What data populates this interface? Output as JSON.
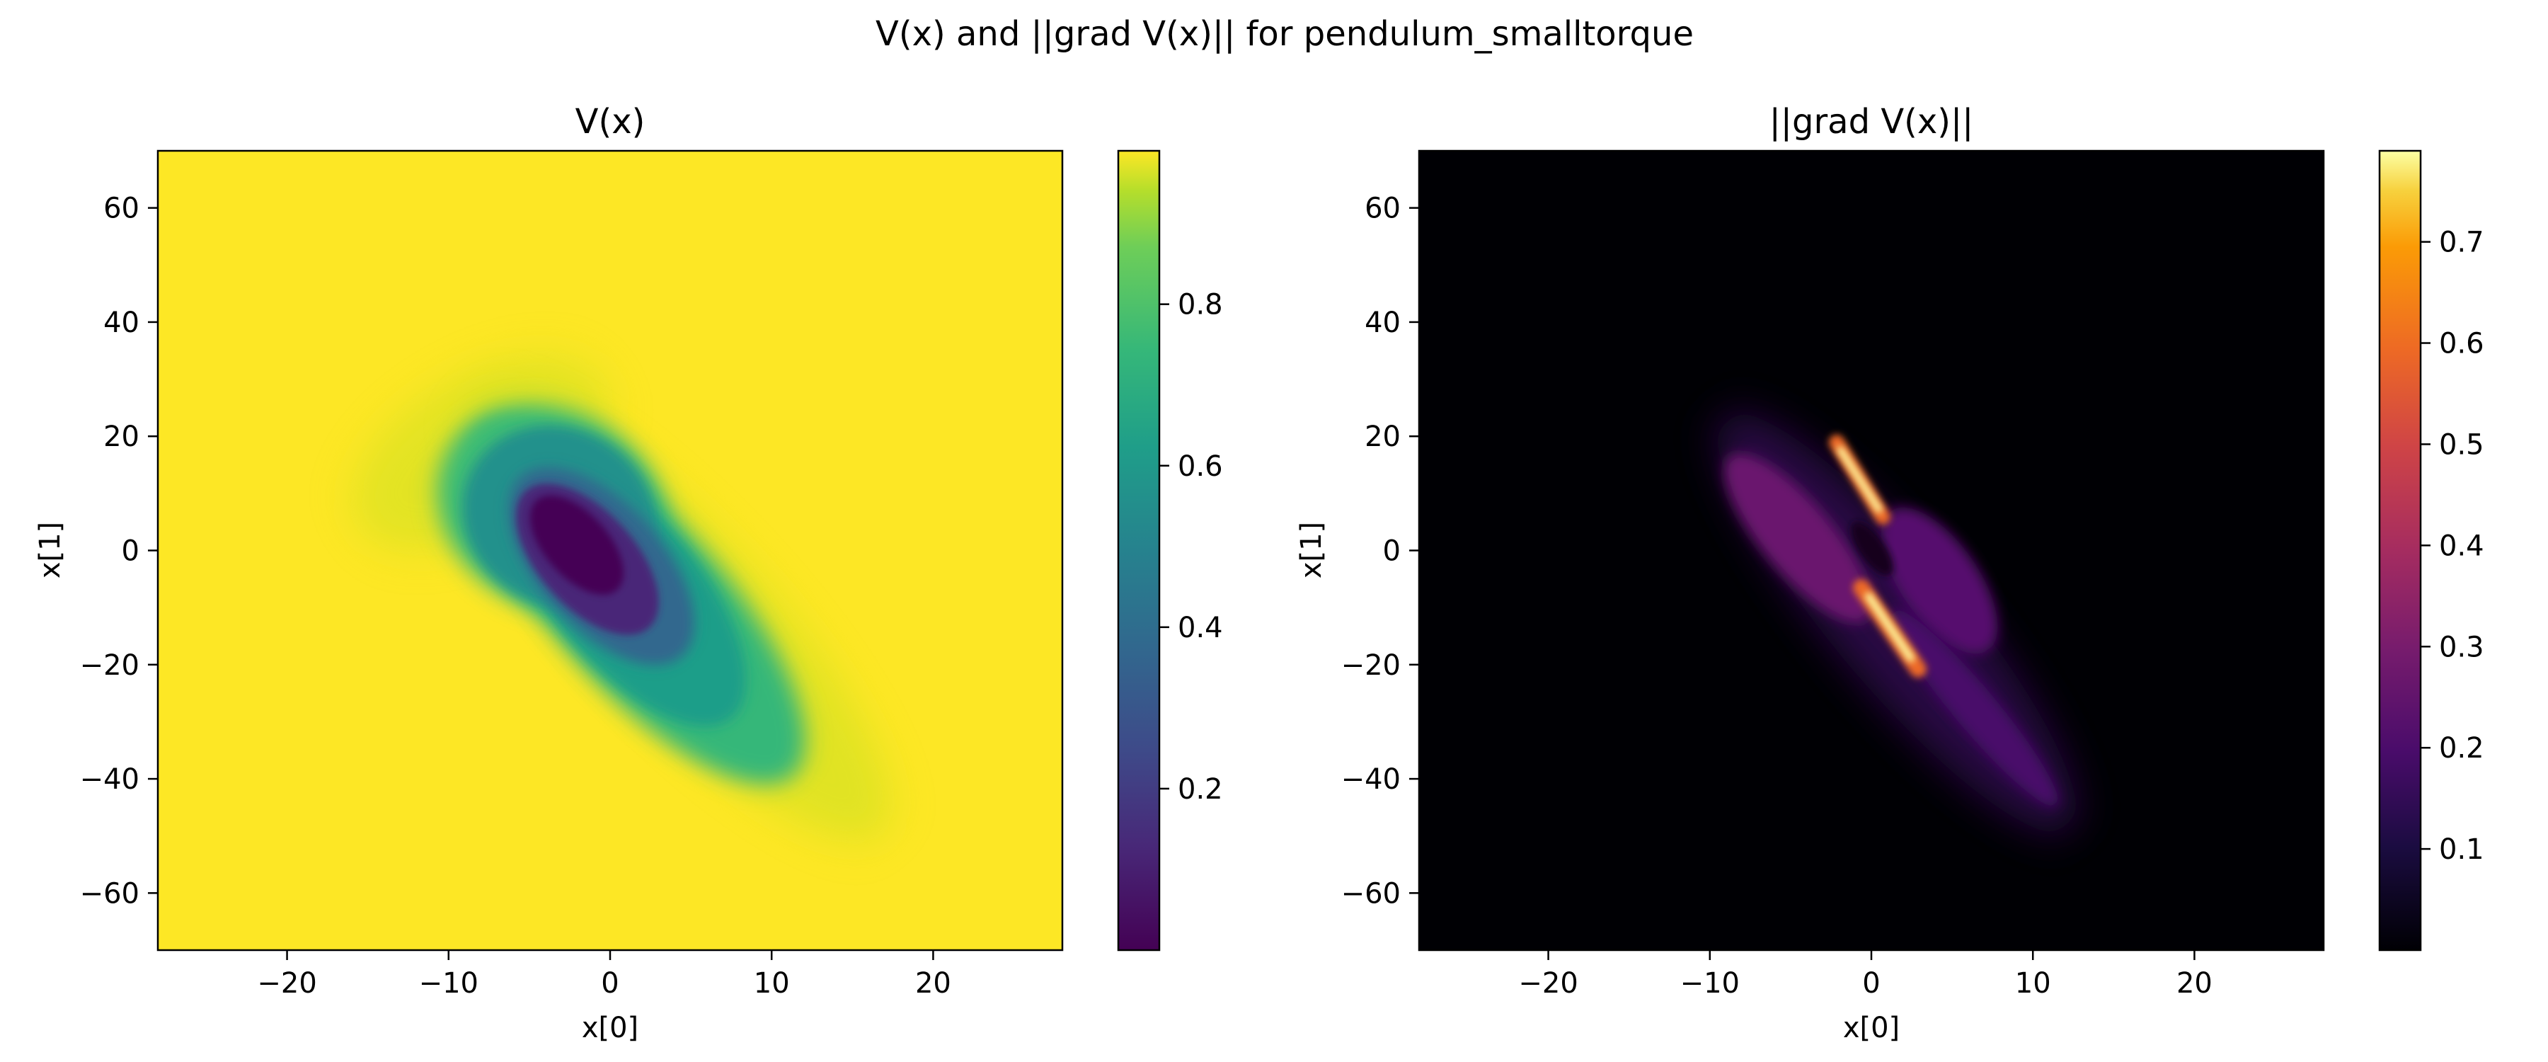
{
  "figure": {
    "suptitle": "V(x) and ||grad V(x)|| for pendulum_smalltorque"
  },
  "chart_data": [
    {
      "type": "heatmap",
      "title": "V(x)",
      "xlabel": "x[0]",
      "ylabel": "x[1]",
      "xlim": [
        -28,
        28
      ],
      "ylim": [
        -70,
        70
      ],
      "xticks": [
        -20,
        -10,
        0,
        10,
        20
      ],
      "xtick_labels": [
        "−20",
        "−10",
        "0",
        "10",
        "20"
      ],
      "yticks": [
        -60,
        -40,
        -20,
        0,
        20,
        40,
        60
      ],
      "ytick_labels": [
        "−60",
        "−40",
        "−20",
        "0",
        "20",
        "40",
        "60"
      ],
      "colormap": "viridis",
      "colorbar": {
        "range": [
          0.0,
          0.99
        ],
        "ticks": [
          0.2,
          0.4,
          0.6,
          0.8
        ],
        "tick_labels": [
          "0.2",
          "0.4",
          "0.6",
          "0.8"
        ]
      },
      "value_range": [
        0.0,
        0.99
      ]
    },
    {
      "type": "heatmap",
      "title": "||grad V(x)||",
      "xlabel": "x[0]",
      "ylabel": "x[1]",
      "xlim": [
        -28,
        28
      ],
      "ylim": [
        -70,
        70
      ],
      "xticks": [
        -20,
        -10,
        0,
        10,
        20
      ],
      "xtick_labels": [
        "−20",
        "−10",
        "0",
        "10",
        "20"
      ],
      "yticks": [
        -60,
        -40,
        -20,
        0,
        20,
        40,
        60
      ],
      "ytick_labels": [
        "−60",
        "−40",
        "−20",
        "0",
        "20",
        "40",
        "60"
      ],
      "colormap": "inferno",
      "colorbar": {
        "range": [
          0.0,
          0.79
        ],
        "ticks": [
          0.1,
          0.2,
          0.3,
          0.4,
          0.5,
          0.6,
          0.7
        ],
        "tick_labels": [
          "0.1",
          "0.2",
          "0.3",
          "0.4",
          "0.5",
          "0.6",
          "0.7"
        ]
      },
      "value_range": [
        0.0,
        0.79
      ]
    }
  ]
}
